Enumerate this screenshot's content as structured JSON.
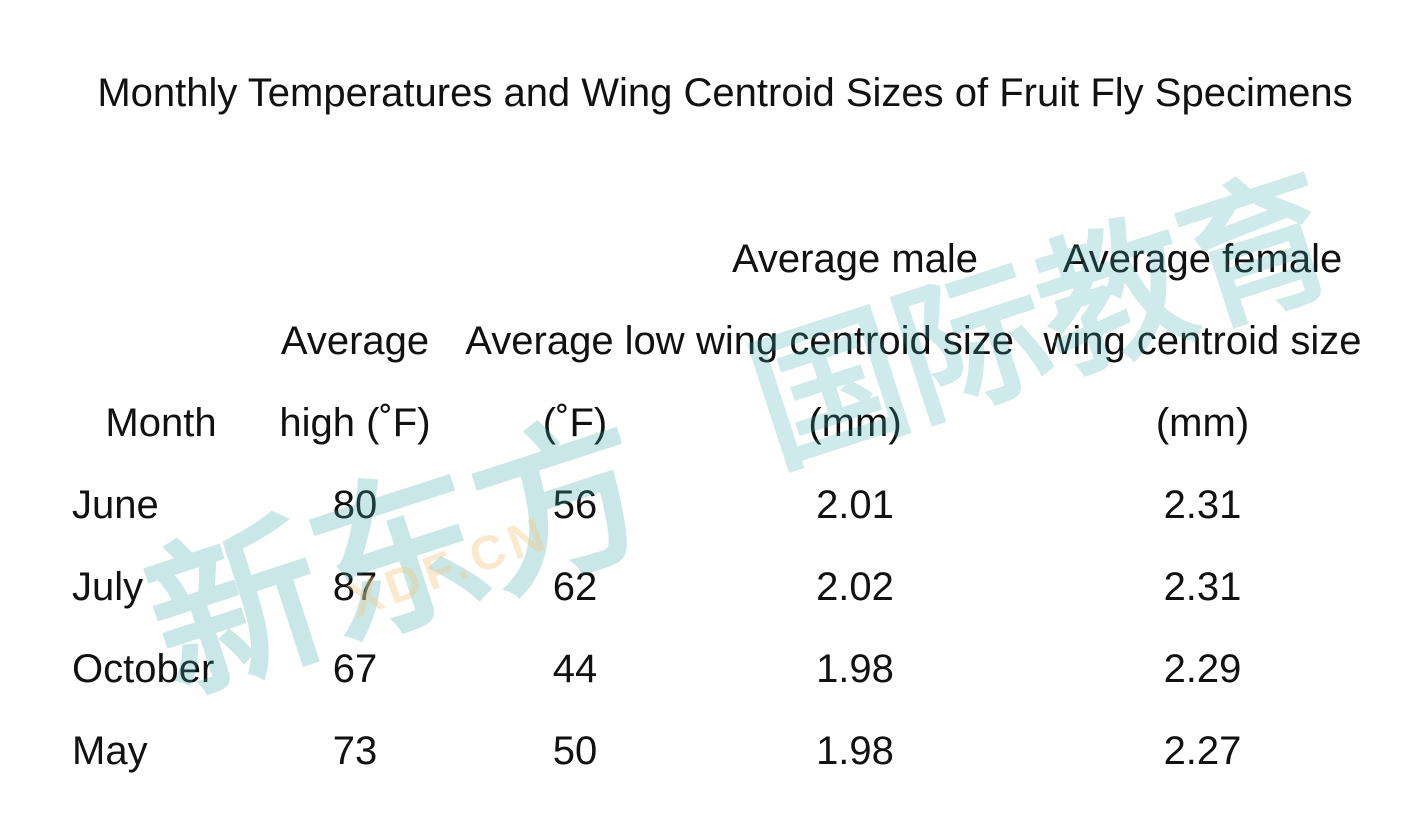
{
  "title": "Monthly Temperatures and Wing Centroid Sizes of Fruit Fly Specimens",
  "table": {
    "header": [
      "Month",
      "Average high (˚F)",
      "Average low (˚F)",
      "Average male wing centroid size (mm)",
      "Average female wing centroid size (mm)"
    ],
    "rows": [
      [
        "June",
        "80",
        "56",
        "2.01",
        "2.31"
      ],
      [
        "July",
        "87",
        "62",
        "2.02",
        "2.31"
      ],
      [
        "October",
        "67",
        "44",
        "1.98",
        "2.29"
      ],
      [
        "May",
        "73",
        "50",
        "1.98",
        "2.27"
      ]
    ]
  },
  "watermark": {
    "brand": "新东方",
    "division": "国际教育",
    "site": "XDF.CN"
  }
}
